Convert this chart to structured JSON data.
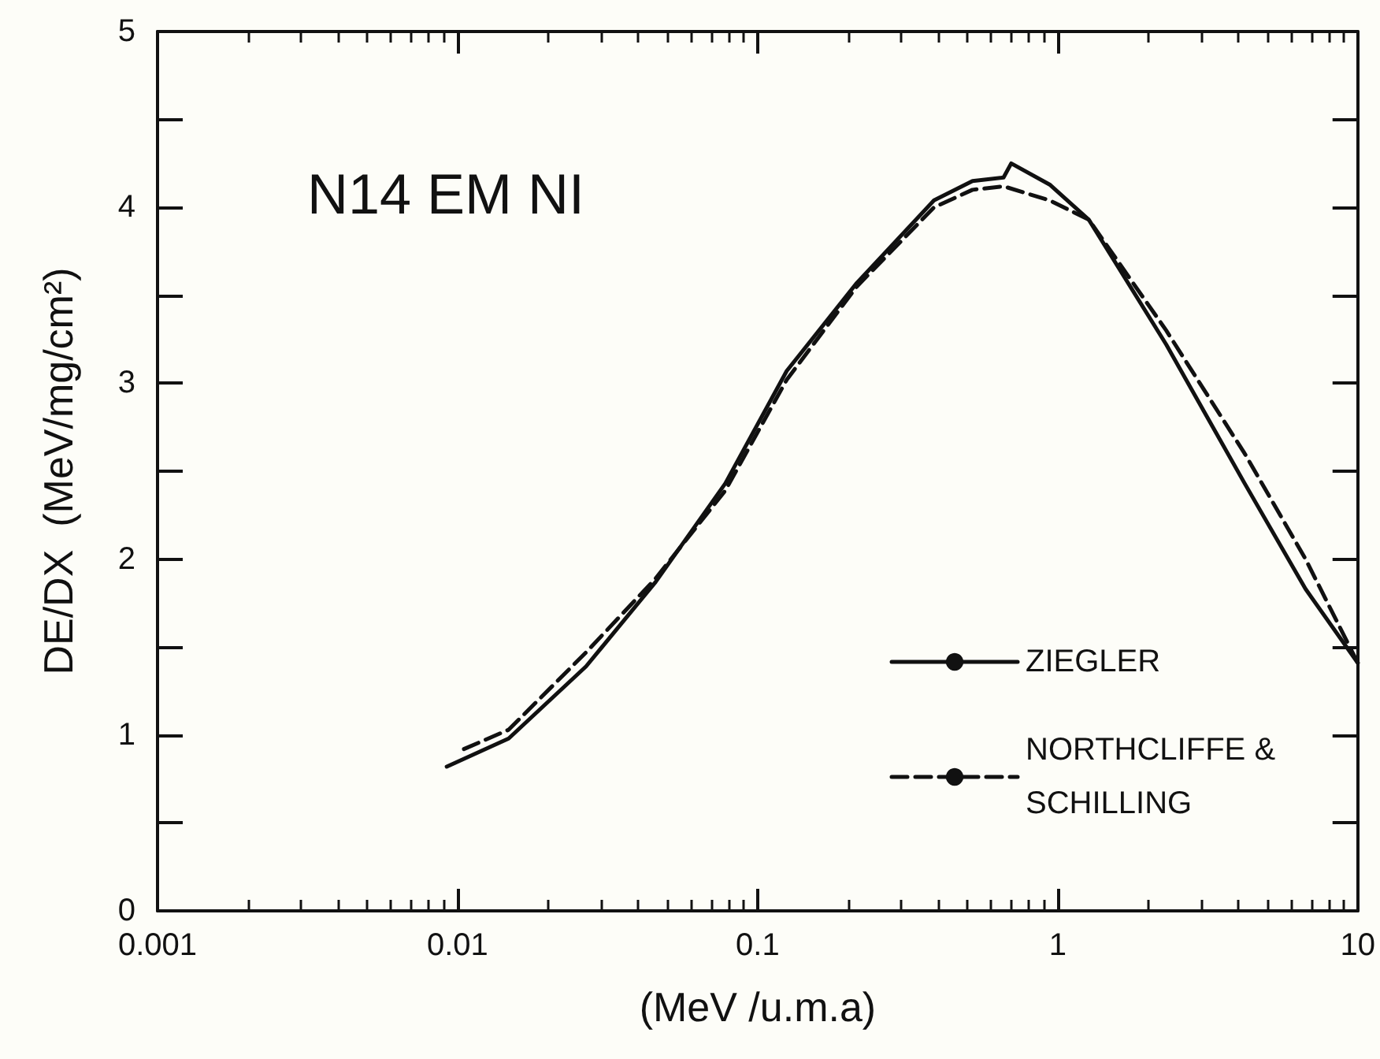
{
  "chart_data": {
    "type": "line",
    "title": "N14 EM NI",
    "xlabel": "(MeV /u.m.a)",
    "ylabel": "DE/DX  (MeV/mg/cm²)",
    "log": "x",
    "xlim": [
      0.001,
      10
    ],
    "xticks": [
      0.001,
      0.01,
      0.1,
      1,
      10
    ],
    "ylim": [
      0,
      5
    ],
    "yticks": [
      0,
      1,
      2,
      3,
      4,
      5
    ],
    "grid": false,
    "legend": "bottom right",
    "marker": "none",
    "series": [
      {
        "name": "ZIEGLER",
        "color": "#111111",
        "line_style": "solid",
        "x": [
          0.0092,
          0.0148,
          0.0268,
          0.0457,
          0.078,
          0.125,
          0.214,
          0.387,
          0.52,
          0.66,
          0.7,
          0.94,
          1.27,
          2.3,
          4.2,
          6.7,
          10
        ],
        "values": [
          0.82,
          0.98,
          1.39,
          1.87,
          2.43,
          3.07,
          3.57,
          4.04,
          4.15,
          4.17,
          4.25,
          4.13,
          3.93,
          3.22,
          2.43,
          1.83,
          1.41
        ]
      },
      {
        "name": "NORTHCLIFFE & SCHILLING",
        "color": "#111111",
        "line_style": "dashed",
        "x": [
          0.0105,
          0.0148,
          0.0268,
          0.0457,
          0.078,
          0.125,
          0.214,
          0.387,
          0.52,
          0.66,
          0.94,
          1.27,
          2.3,
          4.2,
          6.7,
          10
        ],
        "values": [
          0.92,
          1.03,
          1.47,
          1.89,
          2.39,
          3.02,
          3.55,
          4.0,
          4.1,
          4.12,
          4.04,
          3.93,
          3.3,
          2.6,
          2.0,
          1.41
        ]
      }
    ]
  }
}
